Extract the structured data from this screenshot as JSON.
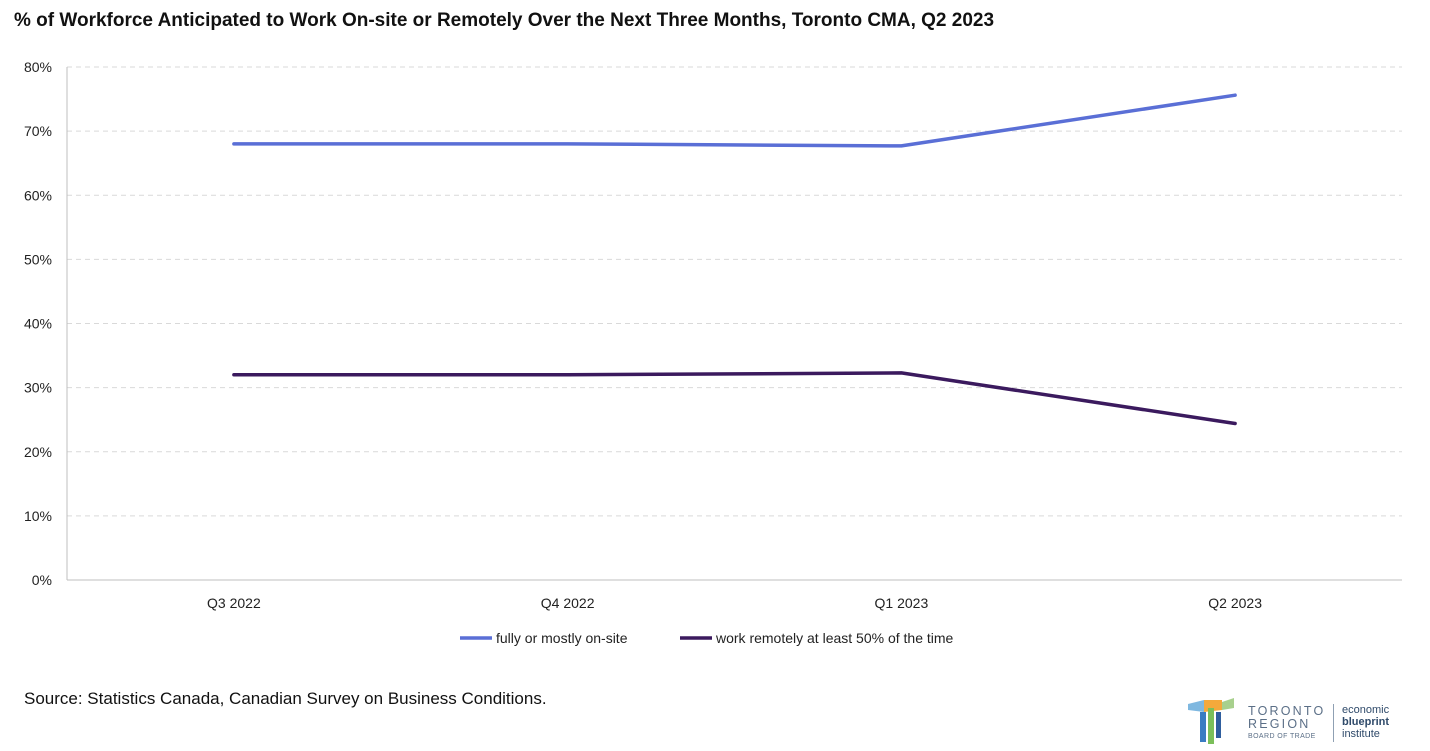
{
  "title": "% of Workforce Anticipated to Work On-site or Remotely Over the Next Three Months, Toronto CMA, Q2 2023",
  "source": "Source: Statistics Canada, Canadian Survey on Business Conditions.",
  "logo": {
    "line1": "TORONTO",
    "line2": "REGION",
    "line3": "BOARD OF TRADE",
    "ebi1": "economic",
    "ebi2": "blueprint",
    "ebi3": "institute"
  },
  "chart_data": {
    "type": "line",
    "title": "% of Workforce Anticipated to Work On-site or Remotely Over the Next Three Months, Toronto CMA, Q2 2023",
    "categories": [
      "Q3 2022",
      "Q4 2022",
      "Q1 2023",
      "Q2 2023"
    ],
    "yticks": [
      "0%",
      "10%",
      "20%",
      "30%",
      "40%",
      "50%",
      "60%",
      "70%",
      "80%"
    ],
    "ylim": [
      0,
      80
    ],
    "grid": true,
    "legend_position": "bottom",
    "series": [
      {
        "name": "fully or mostly on-site",
        "values": [
          68.0,
          68.0,
          67.7,
          75.6
        ],
        "color": "#5a6fd6"
      },
      {
        "name": "work remotely at least 50% of the time",
        "values": [
          32.0,
          32.0,
          32.3,
          24.4
        ],
        "color": "#3b1a5e"
      }
    ]
  }
}
